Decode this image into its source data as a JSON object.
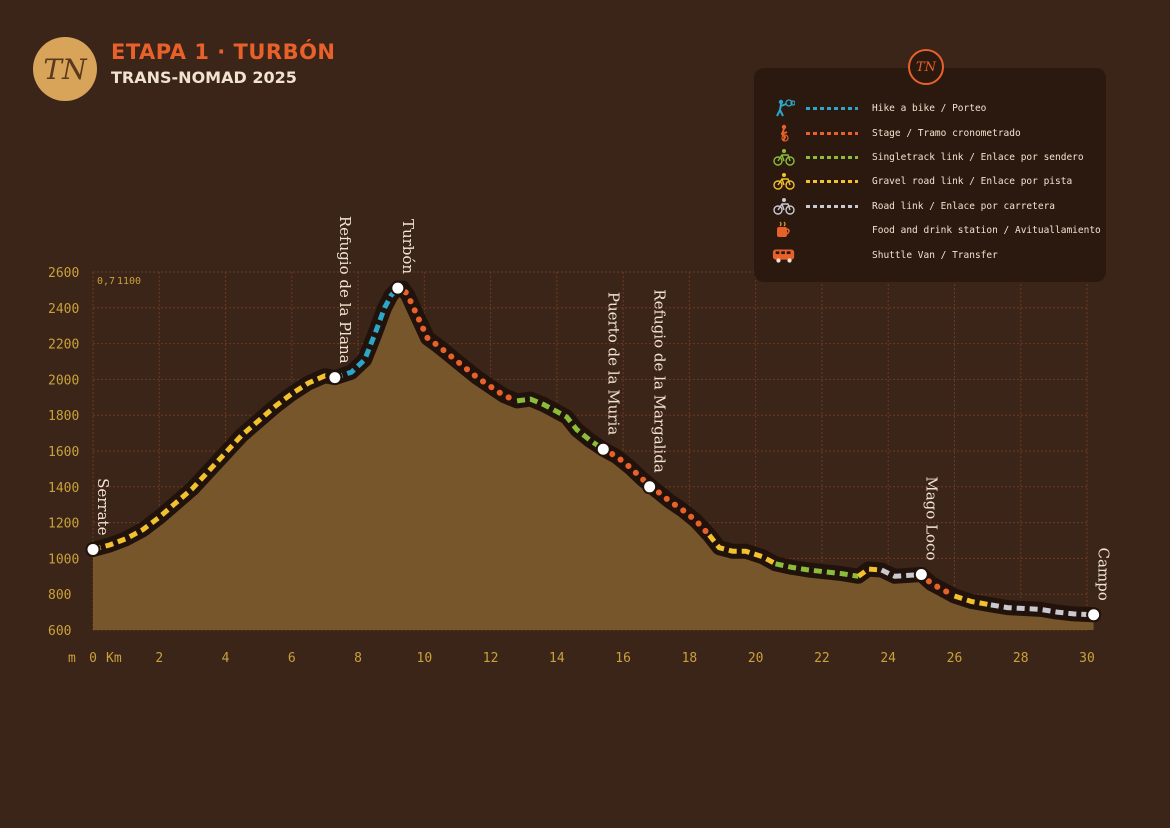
{
  "header": {
    "logo_text": "TN",
    "title": "ETAPA 1 · TURBÓN",
    "subtitle": "TRANS-NOMAD 2025"
  },
  "colors": {
    "background": "#3b2418",
    "fill": "#7a5a2c",
    "track_shadow": "#21130b",
    "grid": "#6e3a1f",
    "axis_text": "#c9a23c",
    "hike": "#2aa7c9",
    "stage": "#e8612a",
    "singletrack": "#8cbd3a",
    "gravel": "#f2c12e",
    "road": "#c9c9cf"
  },
  "legend": {
    "items": [
      {
        "icon": "hike-a-bike-icon",
        "color": "#2aa7c9",
        "label": "Hike a bike / Porteo"
      },
      {
        "icon": "stage-icon",
        "color": "#e8612a",
        "label": "Stage / Tramo cronometrado"
      },
      {
        "icon": "singletrack-bike-icon",
        "color": "#8cbd3a",
        "label": "Singletrack link / Enlace por sendero"
      },
      {
        "icon": "gravel-bike-icon",
        "color": "#f2c12e",
        "label": "Gravel road link / Enlace por pista"
      },
      {
        "icon": "road-bike-icon",
        "color": "#c9c9cf",
        "label": "Road link / Enlace por carretera"
      },
      {
        "icon": "food-drink-icon",
        "color": "",
        "label": "Food and drink station / Avituallamiento"
      },
      {
        "icon": "shuttle-van-icon",
        "color": "",
        "label": "Shuttle Van / Transfer"
      }
    ]
  },
  "chart_data": {
    "type": "area",
    "xlabel": "Km",
    "ylabel": "m",
    "xlim": [
      0,
      30
    ],
    "ylim": [
      600,
      2600
    ],
    "x_ticks": [
      "0",
      "2",
      "4",
      "6",
      "8",
      "10",
      "12",
      "14",
      "16",
      "18",
      "20",
      "22",
      "24",
      "26",
      "28",
      "30"
    ],
    "y_ticks": [
      "600",
      "800",
      "1000",
      "1200",
      "1400",
      "1600",
      "1800",
      "2000",
      "2200",
      "2400",
      "2600"
    ],
    "grid": true,
    "corner_note": {
      "x_value": "0,7",
      "y_value": "1100"
    },
    "profile": {
      "x": [
        0,
        0.5,
        1,
        1.5,
        2,
        2.5,
        3,
        3.5,
        4,
        4.5,
        5,
        5.5,
        6,
        6.5,
        7,
        7.3,
        7.8,
        8.2,
        8.5,
        8.8,
        9.0,
        9.2,
        9.35,
        9.5,
        9.8,
        10.1,
        10.4,
        10.8,
        11.2,
        11.6,
        12.0,
        12.4,
        12.8,
        13.2,
        13.6,
        14.0,
        14.3,
        14.6,
        15.0,
        15.4,
        15.8,
        16.2,
        16.6,
        17.0,
        17.4,
        17.8,
        18.2,
        18.6,
        18.9,
        19.3,
        19.7,
        20.2,
        20.6,
        21.1,
        21.6,
        22.1,
        22.6,
        23.1,
        23.4,
        23.8,
        24.2,
        24.6,
        25.0,
        25.3,
        25.6,
        26.0,
        26.5,
        27.1,
        27.6,
        28.1,
        28.6,
        29.1,
        29.6,
        30.2
      ],
      "y": [
        1050,
        1075,
        1110,
        1160,
        1230,
        1310,
        1390,
        1490,
        1590,
        1690,
        1770,
        1850,
        1920,
        1980,
        2020,
        2010,
        2040,
        2110,
        2250,
        2400,
        2470,
        2510,
        2510,
        2470,
        2350,
        2230,
        2190,
        2130,
        2070,
        2010,
        1960,
        1910,
        1880,
        1890,
        1860,
        1820,
        1790,
        1720,
        1660,
        1610,
        1570,
        1510,
        1440,
        1380,
        1320,
        1270,
        1210,
        1130,
        1060,
        1040,
        1040,
        1010,
        970,
        950,
        935,
        925,
        915,
        900,
        940,
        935,
        900,
        905,
        910,
        860,
        830,
        790,
        760,
        740,
        725,
        720,
        715,
        700,
        690,
        685
      ]
    },
    "segments": [
      {
        "type": "gravel",
        "x_start": 0,
        "x_end": 7.3
      },
      {
        "type": "hike",
        "x_start": 7.3,
        "x_end": 9.2
      },
      {
        "type": "stage",
        "x_start": 9.2,
        "x_end": 12.8
      },
      {
        "type": "singletrack",
        "x_start": 12.8,
        "x_end": 15.4
      },
      {
        "type": "stage",
        "x_start": 15.4,
        "x_end": 18.6
      },
      {
        "type": "gravel",
        "x_start": 18.6,
        "x_end": 20.6
      },
      {
        "type": "singletrack",
        "x_start": 20.6,
        "x_end": 23.1
      },
      {
        "type": "gravel",
        "x_start": 23.1,
        "x_end": 23.8
      },
      {
        "type": "road",
        "x_start": 23.8,
        "x_end": 25.0
      },
      {
        "type": "stage",
        "x_start": 25.0,
        "x_end": 26.0
      },
      {
        "type": "gravel",
        "x_start": 26.0,
        "x_end": 27.1
      },
      {
        "type": "road",
        "x_start": 27.1,
        "x_end": 30.2
      }
    ],
    "waypoints": [
      {
        "name": "Serrate",
        "x": 0,
        "y": 1050
      },
      {
        "name": "Refugio de la Plana",
        "x": 7.3,
        "y": 2010
      },
      {
        "name": "Turbón",
        "x": 9.2,
        "y": 2510
      },
      {
        "name": "Puerto de la Muria",
        "x": 15.4,
        "y": 1610
      },
      {
        "name": "Refugio de la Margalida",
        "x": 16.8,
        "y": 1400
      },
      {
        "name": "Mago Loco",
        "x": 25.0,
        "y": 910
      },
      {
        "name": "Campo",
        "x": 30.2,
        "y": 685
      }
    ]
  }
}
